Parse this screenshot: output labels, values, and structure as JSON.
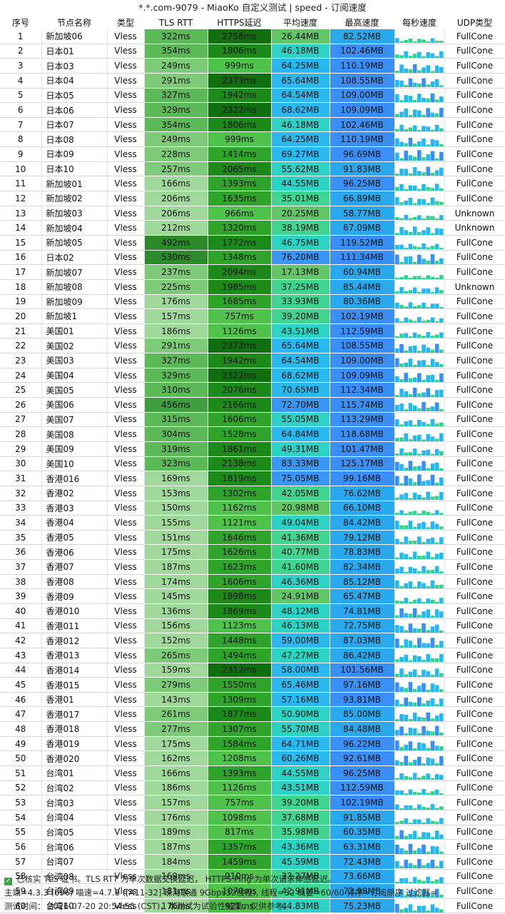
{
  "title": "*.*.com-9079 - MiaoKo 自定义测试 | speed - 订阅速度",
  "colors": {
    "tls_rtt": [
      "#9fd89a",
      "#7dca78",
      "#5bb957",
      "#3f9e3d",
      "#2c8a2b"
    ],
    "https": [
      "#4fc24c",
      "#2ea42b",
      "#1b8a18",
      "#0f6e0d"
    ],
    "avg_speed": [
      "#61c766",
      "#3fd48f",
      "#2cd2c4",
      "#29b9ee",
      "#3a96f5"
    ],
    "max_speed": [
      "#2aa8ee",
      "#3a8ff7"
    ],
    "spark": [
      "#2ed48a",
      "#27b8f0",
      "#3a8ff7"
    ]
  },
  "chart_data": {
    "type": "table",
    "columns": [
      "序号",
      "节点名称",
      "类型",
      "TLS RTT",
      "HTTPS延迟",
      "平均速度",
      "最高速度",
      "每秒速度",
      "UDP类型"
    ],
    "rows": [
      [
        "1",
        "新加坡06",
        "Vless",
        "322ms",
        "2758ms",
        "26.44MB",
        "82.52MB",
        "",
        "FullCone"
      ],
      [
        "2",
        "日本01",
        "Vless",
        "354ms",
        "1806ms",
        "46.18MB",
        "102.46MB",
        "",
        "FullCone"
      ],
      [
        "3",
        "日本03",
        "Vless",
        "249ms",
        "999ms",
        "64.25MB",
        "110.19MB",
        "",
        "FullCone"
      ],
      [
        "4",
        "日本04",
        "Vless",
        "291ms",
        "2373ms",
        "65.64MB",
        "108.55MB",
        "",
        "FullCone"
      ],
      [
        "5",
        "日本05",
        "Vless",
        "327ms",
        "1942ms",
        "64.54MB",
        "109.00MB",
        "",
        "FullCone"
      ],
      [
        "6",
        "日本06",
        "Vless",
        "329ms",
        "2322ms",
        "68.62MB",
        "109.09MB",
        "",
        "FullCone"
      ],
      [
        "7",
        "日本07",
        "Vless",
        "354ms",
        "1806ms",
        "46.18MB",
        "102.46MB",
        "",
        "FullCone"
      ],
      [
        "8",
        "日本08",
        "Vless",
        "249ms",
        "999ms",
        "64.25MB",
        "110.19MB",
        "",
        "FullCone"
      ],
      [
        "9",
        "日本09",
        "Vless",
        "228ms",
        "1414ms",
        "69.27MB",
        "96.69MB",
        "",
        "FullCone"
      ],
      [
        "10",
        "日本10",
        "Vless",
        "257ms",
        "2065ms",
        "55.62MB",
        "91.83MB",
        "",
        "FullCone"
      ],
      [
        "11",
        "新加坡01",
        "Vless",
        "166ms",
        "1393ms",
        "44.55MB",
        "96.25MB",
        "",
        "FullCone"
      ],
      [
        "12",
        "新加坡02",
        "Vless",
        "206ms",
        "1635ms",
        "35.01MB",
        "66.89MB",
        "",
        "FullCone"
      ],
      [
        "13",
        "新加坡03",
        "Vless",
        "206ms",
        "966ms",
        "20.25MB",
        "58.77MB",
        "",
        "Unknown"
      ],
      [
        "14",
        "新加坡04",
        "Vless",
        "212ms",
        "1320ms",
        "38.19MB",
        "67.09MB",
        "",
        "Unknown"
      ],
      [
        "15",
        "新加坡05",
        "Vless",
        "492ms",
        "1772ms",
        "46.75MB",
        "119.52MB",
        "",
        "FullCone"
      ],
      [
        "16",
        "日本02",
        "Vless",
        "530ms",
        "1348ms",
        "76.20MB",
        "111.34MB",
        "",
        "FullCone"
      ],
      [
        "17",
        "新加坡07",
        "Vless",
        "237ms",
        "2094ms",
        "17.13MB",
        "60.94MB",
        "",
        "FullCone"
      ],
      [
        "18",
        "新加坡08",
        "Vless",
        "225ms",
        "1985ms",
        "37.25MB",
        "85.44MB",
        "",
        "Unknown"
      ],
      [
        "19",
        "新加坡09",
        "Vless",
        "176ms",
        "1685ms",
        "33.93MB",
        "80.36MB",
        "",
        "FullCone"
      ],
      [
        "20",
        "新加坡1",
        "Vless",
        "157ms",
        "757ms",
        "39.20MB",
        "102.19MB",
        "",
        "FullCone"
      ],
      [
        "21",
        "美国01",
        "Vless",
        "186ms",
        "1126ms",
        "43.51MB",
        "112.59MB",
        "",
        "FullCone"
      ],
      [
        "22",
        "美国02",
        "Vless",
        "291ms",
        "2373ms",
        "65.64MB",
        "108.55MB",
        "",
        "FullCone"
      ],
      [
        "23",
        "美国03",
        "Vless",
        "327ms",
        "1942ms",
        "64.54MB",
        "109.00MB",
        "",
        "FullCone"
      ],
      [
        "24",
        "美国04",
        "Vless",
        "329ms",
        "2322ms",
        "68.62MB",
        "109.09MB",
        "",
        "FullCone"
      ],
      [
        "25",
        "美国05",
        "Vless",
        "310ms",
        "2076ms",
        "70.65MB",
        "112.34MB",
        "",
        "FullCone"
      ],
      [
        "26",
        "美国06",
        "Vless",
        "456ms",
        "2166ms",
        "72.70MB",
        "115.74MB",
        "",
        "FullCone"
      ],
      [
        "27",
        "美国07",
        "Vless",
        "315ms",
        "1606ms",
        "55.05MB",
        "113.29MB",
        "",
        "FullCone"
      ],
      [
        "28",
        "美国08",
        "Vless",
        "304ms",
        "1528ms",
        "64.84MB",
        "118.68MB",
        "",
        "FullCone"
      ],
      [
        "29",
        "美国09",
        "Vless",
        "319ms",
        "1861ms",
        "49.31MB",
        "101.47MB",
        "",
        "FullCone"
      ],
      [
        "30",
        "美国10",
        "Vless",
        "323ms",
        "2138ms",
        "83.33MB",
        "125.17MB",
        "",
        "FullCone"
      ],
      [
        "31",
        "香港016",
        "Vless",
        "169ms",
        "1819ms",
        "75.05MB",
        "99.16MB",
        "",
        "FullCone"
      ],
      [
        "32",
        "香港02",
        "Vless",
        "153ms",
        "1302ms",
        "42.05MB",
        "76.62MB",
        "",
        "FullCone"
      ],
      [
        "33",
        "香港03",
        "Vless",
        "150ms",
        "1162ms",
        "20.98MB",
        "66.10MB",
        "",
        "FullCone"
      ],
      [
        "34",
        "香港04",
        "Vless",
        "155ms",
        "1121ms",
        "49.04MB",
        "84.42MB",
        "",
        "FullCone"
      ],
      [
        "35",
        "香港05",
        "Vless",
        "151ms",
        "1646ms",
        "41.36MB",
        "79.12MB",
        "",
        "FullCone"
      ],
      [
        "36",
        "香港06",
        "Vless",
        "175ms",
        "1626ms",
        "40.77MB",
        "78.83MB",
        "",
        "FullCone"
      ],
      [
        "37",
        "香港07",
        "Vless",
        "187ms",
        "1623ms",
        "41.60MB",
        "82.34MB",
        "",
        "FullCone"
      ],
      [
        "38",
        "香港08",
        "Vless",
        "174ms",
        "1606ms",
        "46.36MB",
        "85.12MB",
        "",
        "FullCone"
      ],
      [
        "39",
        "香港09",
        "Vless",
        "145ms",
        "1898ms",
        "24.91MB",
        "65.47MB",
        "",
        "FullCone"
      ],
      [
        "40",
        "香港010",
        "Vless",
        "136ms",
        "1869ms",
        "48.12MB",
        "74.81MB",
        "",
        "FullCone"
      ],
      [
        "41",
        "香港011",
        "Vless",
        "156ms",
        "1123ms",
        "46.13MB",
        "72.75MB",
        "",
        "FullCone"
      ],
      [
        "42",
        "香港012",
        "Vless",
        "152ms",
        "1448ms",
        "59.00MB",
        "87.03MB",
        "",
        "FullCone"
      ],
      [
        "43",
        "香港013",
        "Vless",
        "265ms",
        "1494ms",
        "47.27MB",
        "86.42MB",
        "",
        "FullCone"
      ],
      [
        "44",
        "香港014",
        "Vless",
        "159ms",
        "2312ms",
        "58.00MB",
        "101.56MB",
        "",
        "FullCone"
      ],
      [
        "45",
        "香港015",
        "Vless",
        "279ms",
        "1550ms",
        "65.46MB",
        "97.16MB",
        "",
        "FullCone"
      ],
      [
        "46",
        "香港01",
        "Vless",
        "143ms",
        "1309ms",
        "57.16MB",
        "93.81MB",
        "",
        "FullCone"
      ],
      [
        "47",
        "香港017",
        "Vless",
        "261ms",
        "1877ms",
        "50.90MB",
        "85.00MB",
        "",
        "FullCone"
      ],
      [
        "48",
        "香港018",
        "Vless",
        "277ms",
        "1307ms",
        "55.70MB",
        "84.48MB",
        "",
        "FullCone"
      ],
      [
        "49",
        "香港019",
        "Vless",
        "175ms",
        "1584ms",
        "64.71MB",
        "96.22MB",
        "",
        "FullCone"
      ],
      [
        "50",
        "香港020",
        "Vless",
        "162ms",
        "1208ms",
        "60.26MB",
        "92.61MB",
        "",
        "FullCone"
      ],
      [
        "51",
        "台湾01",
        "Vless",
        "166ms",
        "1393ms",
        "44.55MB",
        "96.25MB",
        "",
        "FullCone"
      ],
      [
        "52",
        "台湾02",
        "Vless",
        "186ms",
        "1126ms",
        "43.51MB",
        "112.59MB",
        "",
        "FullCone"
      ],
      [
        "53",
        "台湾03",
        "Vless",
        "157ms",
        "757ms",
        "39.20MB",
        "102.19MB",
        "",
        "FullCone"
      ],
      [
        "54",
        "台湾04",
        "Vless",
        "176ms",
        "1098ms",
        "37.68MB",
        "91.85MB",
        "",
        "FullCone"
      ],
      [
        "55",
        "台湾05",
        "Vless",
        "189ms",
        "817ms",
        "35.98MB",
        "60.35MB",
        "",
        "FullCone"
      ],
      [
        "56",
        "台湾06",
        "Vless",
        "187ms",
        "1357ms",
        "43.36MB",
        "63.31MB",
        "",
        "FullCone"
      ],
      [
        "57",
        "台湾07",
        "Vless",
        "184ms",
        "1459ms",
        "45.59MB",
        "72.43MB",
        "",
        "FullCone"
      ],
      [
        "58",
        "台湾08",
        "Vless",
        "169ms",
        "910ms",
        "33.27MB",
        "73.66MB",
        "",
        "FullCone"
      ],
      [
        "59",
        "台湾09",
        "Vless",
        "181ms",
        "1070ms",
        "42.91MB",
        "72.98MB",
        "",
        "FullCone"
      ],
      [
        "60",
        "台湾10",
        "Vless",
        "176ms",
        "921ms",
        "44.83MB",
        "75.23MB",
        "",
        "FullCone"
      ]
    ]
  },
  "footer": {
    "line1": "已核实 TLS 证书。TLS RTT 为单次数据交换延迟， HTTPS Ping 为单次请求体感延迟。",
    "line2": "主端=4.3.3 (696) 喵速=4.7.0 ([A11-32] 珠海联通 9Gbps32线程), 线程=32 概要=60/60 排序=订阅原序 过滤器=",
    "line3": "测试时间： 2026-07-20 20:54:55 (CST)，本测试为试验性结果，仅供参考。"
  }
}
